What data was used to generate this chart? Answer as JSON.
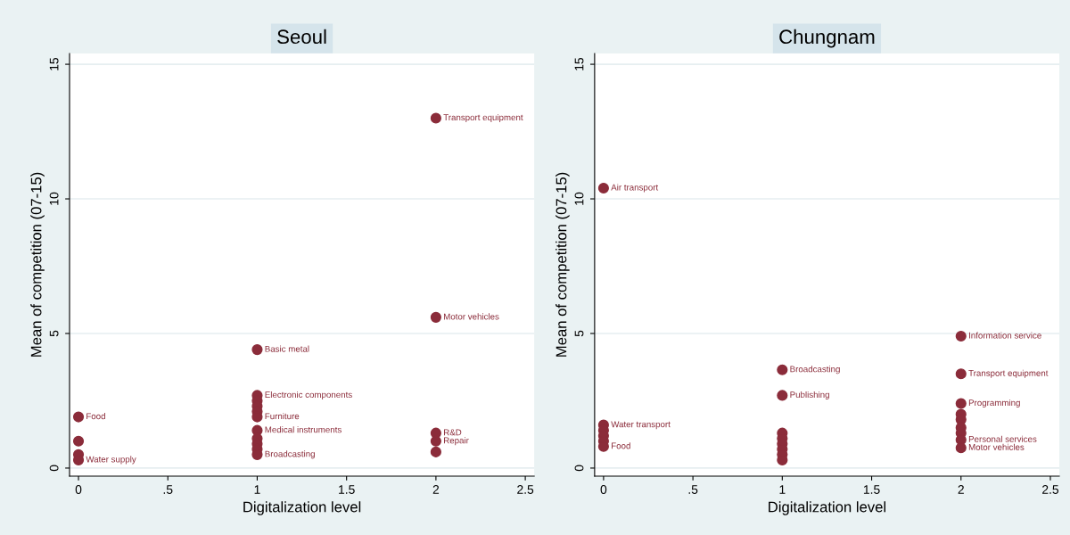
{
  "chart_data": [
    {
      "type": "scatter",
      "title": "Seoul",
      "xlabel": "Digitalization level",
      "ylabel": "Mean of competition (07-15)",
      "xlim": [
        -0.05,
        2.55
      ],
      "ylim": [
        -0.3,
        15.4
      ],
      "xticks": [
        0,
        {
          "value": 0.5,
          "label": ".5"
        },
        1,
        1.5,
        2,
        2.5
      ],
      "yticks": [
        0,
        5,
        10,
        15
      ],
      "grid": "y",
      "marker": "circle",
      "legend": false,
      "series": [
        {
          "color": "#8b2c3a",
          "x": [
            0,
            0,
            0,
            0,
            1,
            1,
            1,
            1,
            1,
            1,
            1,
            1,
            1,
            1,
            1,
            2,
            2,
            2,
            2,
            2
          ],
          "values": [
            1.9,
            1.0,
            0.5,
            0.3,
            4.4,
            2.7,
            2.5,
            2.3,
            2.1,
            1.9,
            1.4,
            1.1,
            0.9,
            0.7,
            0.5,
            13.0,
            5.6,
            1.3,
            1.0,
            0.6
          ]
        }
      ],
      "annotations": [
        {
          "text": "Transport equipment",
          "x": 2,
          "y": 13.0
        },
        {
          "text": "Motor vehicles",
          "x": 2,
          "y": 5.6
        },
        {
          "text": "Basic metal",
          "x": 1,
          "y": 4.4
        },
        {
          "text": "Food",
          "x": 0,
          "y": 1.9
        },
        {
          "text": "Electronic components",
          "x": 1,
          "y": 2.7
        },
        {
          "text": "Furniture",
          "x": 1,
          "y": 1.9
        },
        {
          "text": "Medical instruments",
          "x": 1,
          "y": 1.4
        },
        {
          "text": "Broadcasting",
          "x": 1,
          "y": 0.5
        },
        {
          "text": "Water supply",
          "x": 0,
          "y": 0.3
        },
        {
          "text": "R&D",
          "x": 2,
          "y": 1.3
        },
        {
          "text": "Repair",
          "x": 2,
          "y": 1.0
        }
      ]
    },
    {
      "type": "scatter",
      "title": "Chungnam",
      "xlabel": "Digitalization level",
      "ylabel": "Mean of competition (07-15)",
      "xlim": [
        -0.05,
        2.55
      ],
      "ylim": [
        -0.3,
        15.4
      ],
      "xticks": [
        0,
        {
          "value": 0.5,
          "label": ".5"
        },
        1,
        1.5,
        2,
        2.5
      ],
      "yticks": [
        0,
        5,
        10,
        15
      ],
      "grid": "y",
      "marker": "circle",
      "legend": false,
      "series": [
        {
          "color": "#8b2c3a",
          "x": [
            0,
            0,
            0,
            0,
            0,
            0,
            1,
            1,
            1,
            1,
            1,
            1,
            1,
            1,
            2,
            2,
            2,
            2,
            2,
            2,
            2,
            2,
            2
          ],
          "values": [
            10.4,
            1.6,
            1.4,
            1.2,
            1.0,
            0.8,
            3.65,
            2.7,
            1.3,
            1.1,
            0.9,
            0.7,
            0.5,
            0.3,
            4.9,
            3.5,
            2.4,
            2.0,
            1.8,
            1.5,
            1.3,
            1.05,
            0.75
          ]
        }
      ],
      "annotations": [
        {
          "text": "Air transport",
          "x": 0,
          "y": 10.4
        },
        {
          "text": "Water transport",
          "x": 0,
          "y": 1.6
        },
        {
          "text": "Food",
          "x": 0,
          "y": 0.8
        },
        {
          "text": "Broadcasting",
          "x": 1,
          "y": 3.65
        },
        {
          "text": "Publishing",
          "x": 1,
          "y": 2.7
        },
        {
          "text": "Information service",
          "x": 2,
          "y": 4.9
        },
        {
          "text": "Transport equipment",
          "x": 2,
          "y": 3.5
        },
        {
          "text": "Programming",
          "x": 2,
          "y": 2.4
        },
        {
          "text": "Personal services",
          "x": 2,
          "y": 1.05
        },
        {
          "text": "Motor vehicles",
          "x": 2,
          "y": 0.75
        }
      ]
    }
  ]
}
